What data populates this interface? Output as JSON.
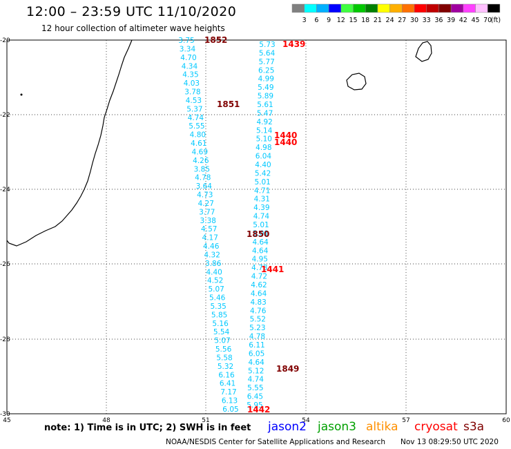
{
  "header": {
    "title": "12:00 – 23:59 UTC 11/10/2020",
    "subtitle": "12 hour collection of altimeter wave heights"
  },
  "color_scale": {
    "labels": [
      "3",
      "6",
      "9",
      "12",
      "15",
      "18",
      "21",
      "24",
      "27",
      "30",
      "33",
      "36",
      "39",
      "42",
      "45",
      "70",
      "(ft)"
    ],
    "colors": [
      "#808080",
      "#00ffff",
      "#00b0ff",
      "#0000ff",
      "#40ff40",
      "#00c800",
      "#008000",
      "#ffff00",
      "#ffb000",
      "#ff7000",
      "#ff0000",
      "#c00000",
      "#800000",
      "#a000a0",
      "#ff40ff",
      "#ffc0ff",
      "#000000"
    ]
  },
  "axes": {
    "lat_labels": [
      "-20",
      "-22",
      "-24",
      "-26",
      "-28",
      "-30"
    ],
    "lon_labels": [
      "45",
      "48",
      "51",
      "54",
      "57",
      "60"
    ]
  },
  "track_west": {
    "color": "#00c8ff",
    "heights": [
      "3.75",
      "3.34",
      "4.70",
      "4.34",
      "4.35",
      "4.03",
      "3.78",
      "4.53",
      "5.37",
      "4.74",
      "5.55",
      "4.80",
      "4.61",
      "4.69",
      "4.26",
      "3.85",
      "4.78",
      "3.64",
      "4.73",
      "4.27",
      "3.77",
      "3.38",
      "4.57",
      "4.17",
      "4.46",
      "4.32",
      "3.86",
      "4.40",
      "4.52",
      "5.07",
      "5.46",
      "5.35",
      "5.85",
      "5.16",
      "5.54",
      "5.07",
      "5.56",
      "5.58",
      "5.32",
      "6.16",
      "6.41",
      "7.17",
      "6.13",
      "6.05"
    ]
  },
  "track_east": {
    "color": "#00c8ff",
    "heights": [
      "5.73",
      "5.64",
      "5.77",
      "6.25",
      "4.99",
      "5.49",
      "5.89",
      "5.61",
      "5.47",
      "4.92",
      "5.14",
      "5.10",
      "4.98",
      "6.04",
      "4.40",
      "5.42",
      "5.01",
      "4.71",
      "4.31",
      "4.39",
      "4.74",
      "5.01",
      "5.01",
      "4.64",
      "4.64",
      "4.95",
      "4.78",
      "4.72",
      "4.62",
      "4.64",
      "4.83",
      "4.76",
      "5.52",
      "5.23",
      "4.78",
      "6.11",
      "6.05",
      "4.64",
      "5.12",
      "4.74",
      "5.55",
      "6.45",
      "5.95"
    ]
  },
  "pass_labels": [
    {
      "text": "1852",
      "color": "#800000"
    },
    {
      "text": "1851",
      "color": "#800000"
    },
    {
      "text": "1850",
      "color": "#800000"
    },
    {
      "text": "1849",
      "color": "#800000"
    },
    {
      "text": "1439",
      "color": "#ff0000"
    },
    {
      "text": "1440",
      "color": "#ff0000"
    },
    {
      "text": "1440",
      "color": "#ff0000"
    },
    {
      "text": "1441",
      "color": "#ff0000"
    },
    {
      "text": "1442",
      "color": "#ff0000"
    }
  ],
  "footer": {
    "note": "note: 1) Time is in UTC; 2) SWH is in feet",
    "satellites": [
      {
        "name": "jason2",
        "color": "#0000ff"
      },
      {
        "name": "jason3",
        "color": "#00a000"
      },
      {
        "name": "altika",
        "color": "#ff9000"
      },
      {
        "name": "cryosat",
        "color": "#ff0000"
      },
      {
        "name": "s3a",
        "color": "#800000"
      }
    ],
    "credit": "NOAA/NESDIS Center for Satellite Applications and Research",
    "timestamp": "Nov 13 08:29:50 UTC 2020"
  }
}
